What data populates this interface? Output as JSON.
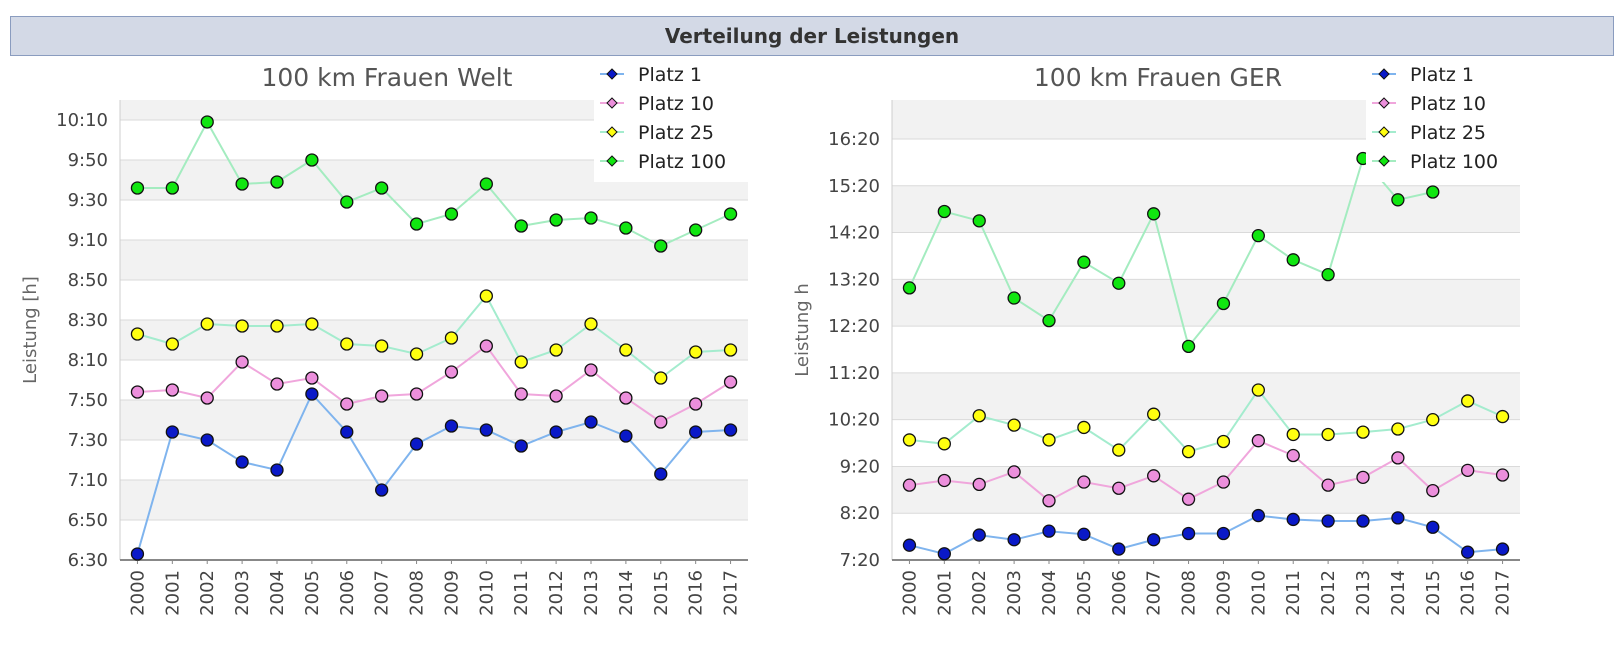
{
  "header": {
    "title": "Verteilung der Leistungen"
  },
  "colors": {
    "platz1_line": "#7fb4ee",
    "platz1_marker": "#0a19c8",
    "platz10_line": "#f0a6dc",
    "platz10_marker": "#ec8fdc",
    "platz25_line": "#a4ecce",
    "platz25_marker": "#ffff10",
    "platz100_line": "#a4ecc0",
    "platz100_marker": "#10e610"
  },
  "chart_data": [
    {
      "type": "line",
      "title": "100 km Frauen Welt",
      "xlabel": "",
      "ylabel": "Leistung [h]",
      "categories": [
        "2000",
        "2001",
        "2002",
        "2003",
        "2004",
        "2005",
        "2006",
        "2007",
        "2008",
        "2009",
        "2010",
        "2011",
        "2012",
        "2013",
        "2014",
        "2015",
        "2016",
        "2017"
      ],
      "yticks": [
        "6:30",
        "6:50",
        "7:10",
        "7:30",
        "7:50",
        "8:10",
        "8:30",
        "8:50",
        "9:10",
        "9:30",
        "9:50",
        "10:10"
      ],
      "ylim": [
        390,
        620
      ],
      "ytick_values": [
        390,
        410,
        430,
        450,
        470,
        490,
        510,
        530,
        550,
        570,
        590,
        610
      ],
      "legend_position": "top-right",
      "series": [
        {
          "name": "Platz 1",
          "values": [
            393,
            454,
            450,
            439,
            435,
            473,
            454,
            425,
            448,
            457,
            455,
            447,
            454,
            459,
            452,
            433,
            454,
            455
          ]
        },
        {
          "name": "Platz 10",
          "values": [
            474,
            475,
            471,
            489,
            478,
            481,
            468,
            472,
            473,
            484,
            497,
            473,
            472,
            485,
            471,
            459,
            468,
            479
          ]
        },
        {
          "name": "Platz 25",
          "values": [
            503,
            498,
            508,
            507,
            507,
            508,
            498,
            497,
            493,
            501,
            522,
            489,
            495,
            508,
            495,
            481,
            494,
            495
          ]
        },
        {
          "name": "Platz 100",
          "values": [
            576,
            576,
            609,
            578,
            579,
            590,
            569,
            576,
            558,
            563,
            578,
            557,
            560,
            561,
            556,
            547,
            555,
            563
          ]
        }
      ]
    },
    {
      "type": "line",
      "title": "100 km Frauen GER",
      "xlabel": "",
      "ylabel": "Leistung h",
      "categories": [
        "2000",
        "2001",
        "2002",
        "2003",
        "2004",
        "2005",
        "2006",
        "2007",
        "2008",
        "2009",
        "2010",
        "2011",
        "2012",
        "2013",
        "2014",
        "2015",
        "2016",
        "2017"
      ],
      "yticks": [
        "7:20",
        "8:20",
        "9:20",
        "10:20",
        "11:20",
        "12:20",
        "13:20",
        "14:20",
        "15:20",
        "16:20"
      ],
      "ylim": [
        440,
        1030
      ],
      "ytick_values": [
        440,
        500,
        560,
        620,
        680,
        740,
        800,
        860,
        920,
        980
      ],
      "legend_position": "top-right",
      "series": [
        {
          "name": "Platz 1",
          "values": [
            459,
            448,
            472,
            466,
            477,
            473,
            454,
            466,
            474,
            474,
            497,
            492,
            490,
            490,
            494,
            482,
            450,
            454
          ]
        },
        {
          "name": "Platz 10",
          "values": [
            536,
            542,
            537,
            553,
            516,
            540,
            532,
            548,
            518,
            540,
            593,
            574,
            536,
            546,
            571,
            529,
            555,
            549
          ]
        },
        {
          "name": "Platz 25",
          "values": [
            594,
            589,
            625,
            613,
            594,
            610,
            581,
            627,
            579,
            592,
            658,
            601,
            601,
            604,
            608,
            620,
            644,
            624
          ]
        },
        {
          "name": "Platz 100",
          "values": [
            789,
            887,
            875,
            776,
            747,
            822,
            795,
            884,
            714,
            769,
            856,
            825,
            806,
            955,
            902,
            912,
            null,
            null
          ]
        }
      ]
    }
  ]
}
